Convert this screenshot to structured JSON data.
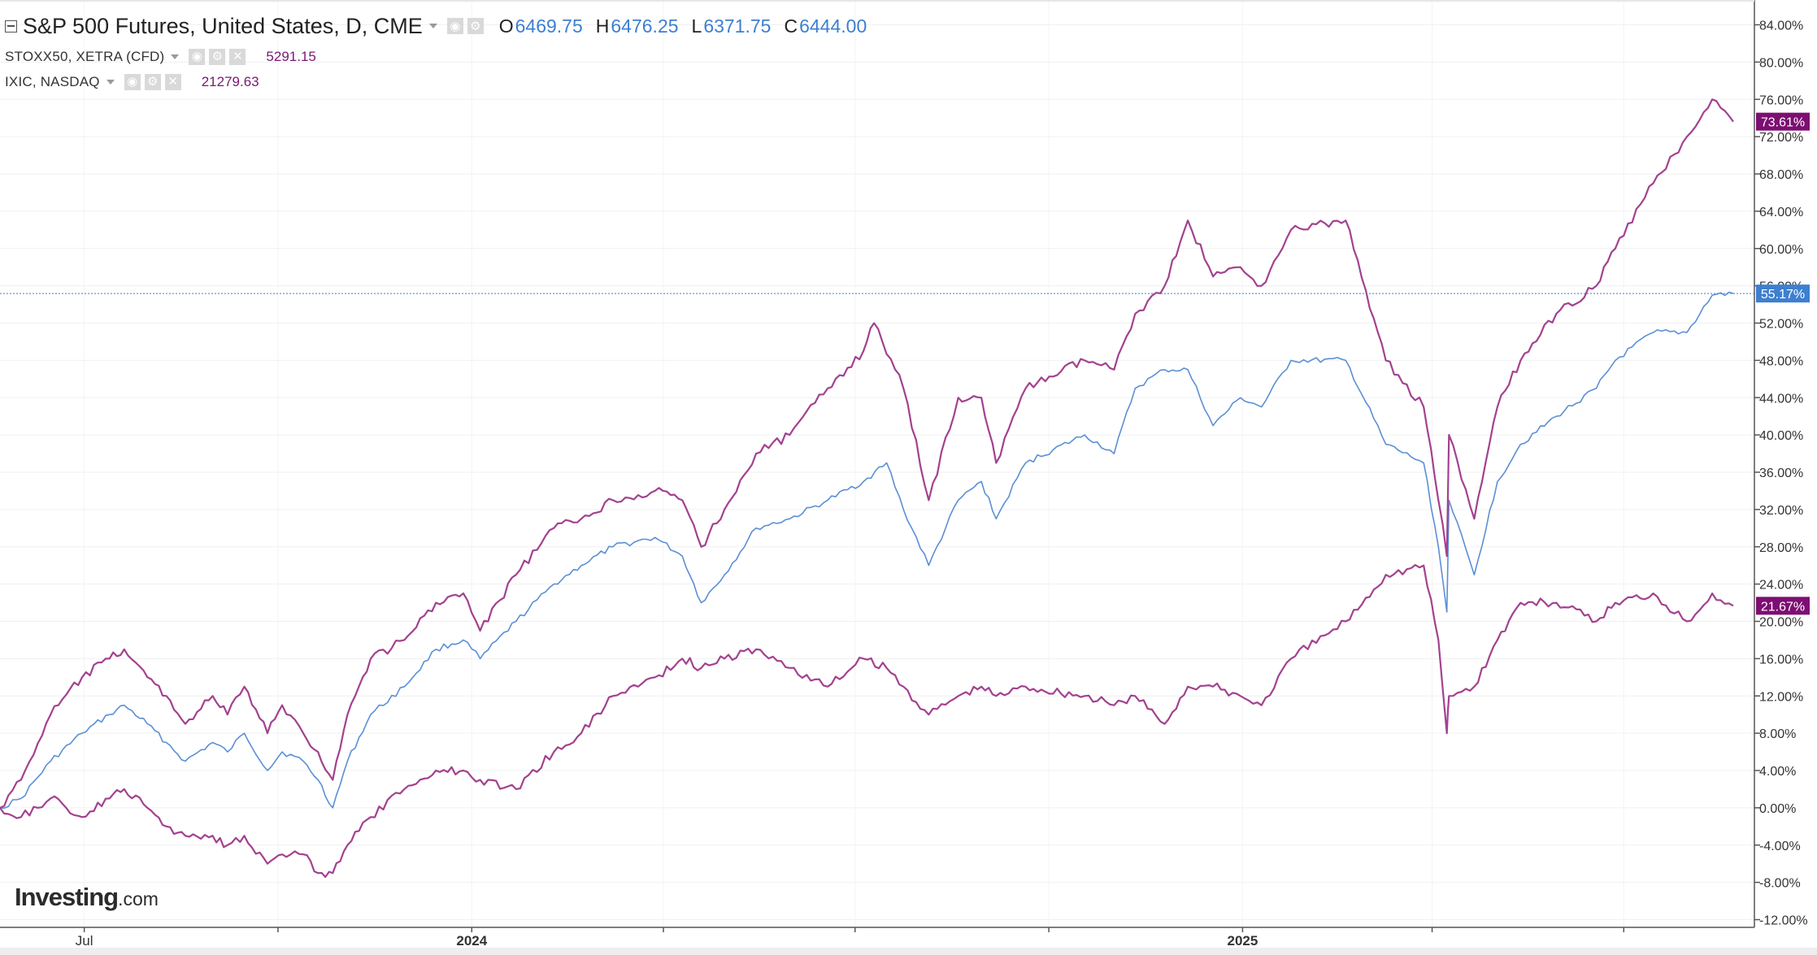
{
  "legend": {
    "main": {
      "name": "S&P 500 Futures, United States, D, CME",
      "ohlc": [
        {
          "label": "O",
          "value": "6469.75"
        },
        {
          "label": "H",
          "value": "6476.25"
        },
        {
          "label": "L",
          "value": "6371.75"
        },
        {
          "label": "C",
          "value": "6444.00"
        }
      ]
    },
    "subs": [
      {
        "name": "STOXX50, XETRA (CFD)",
        "value": "5291.15"
      },
      {
        "name": "IXIC, NASDAQ",
        "value": "21279.63"
      }
    ]
  },
  "watermark": {
    "brand": "Investing",
    "suffix": ".com"
  },
  "colors": {
    "sp500": "#5b8fd6",
    "stoxx": "#a3418f",
    "nasdaq": "#a3418f",
    "badge_purple": "#7d0e72",
    "badge_blue": "#3d7fd0"
  },
  "chart_data": {
    "type": "line",
    "title": "S&P 500 Futures, United States, D, CME",
    "y_unit": "% change",
    "ylim": [
      -12,
      84
    ],
    "y_ticks": [
      "84.00%",
      "80.00%",
      "76.00%",
      "72.00%",
      "68.00%",
      "64.00%",
      "60.00%",
      "56.00%",
      "52.00%",
      "48.00%",
      "44.00%",
      "40.00%",
      "36.00%",
      "32.00%",
      "28.00%",
      "24.00%",
      "20.00%",
      "16.00%",
      "12.00%",
      "8.00%",
      "4.00%",
      "0.00%",
      "-4.00%",
      "-8.00%",
      "-12.00%"
    ],
    "x_labels": [
      "Jul",
      "2024",
      "2025"
    ],
    "x_range": [
      "2023-05-22",
      "2025-08-22"
    ],
    "crosshair_value": 55.17,
    "series": [
      {
        "key": "sp500",
        "end_label": "55.17%",
        "points": [
          [
            "2023-05-22",
            0
          ],
          [
            "2023-06-01",
            1
          ],
          [
            "2023-06-15",
            5
          ],
          [
            "2023-06-30",
            8
          ],
          [
            "2023-07-13",
            10
          ],
          [
            "2023-07-20",
            11
          ],
          [
            "2023-07-31",
            9
          ],
          [
            "2023-08-09",
            7
          ],
          [
            "2023-08-18",
            5
          ],
          [
            "2023-08-31",
            7
          ],
          [
            "2023-09-07",
            6
          ],
          [
            "2023-09-15",
            8
          ],
          [
            "2023-09-26",
            4
          ],
          [
            "2023-10-03",
            6
          ],
          [
            "2023-10-13",
            5
          ],
          [
            "2023-10-20",
            3
          ],
          [
            "2023-10-27",
            0
          ],
          [
            "2023-11-03",
            5
          ],
          [
            "2023-11-14",
            10
          ],
          [
            "2023-11-30",
            13
          ],
          [
            "2023-12-15",
            17
          ],
          [
            "2023-12-28",
            18
          ],
          [
            "2024-01-05",
            16
          ],
          [
            "2024-01-22",
            20
          ],
          [
            "2024-02-09",
            24
          ],
          [
            "2024-02-22",
            26
          ],
          [
            "2024-03-08",
            28
          ],
          [
            "2024-03-28",
            29
          ],
          [
            "2024-04-10",
            27
          ],
          [
            "2024-04-19",
            22
          ],
          [
            "2024-04-30",
            25
          ],
          [
            "2024-05-15",
            30
          ],
          [
            "2024-05-31",
            31
          ],
          [
            "2024-06-18",
            33
          ],
          [
            "2024-07-05",
            35
          ],
          [
            "2024-07-16",
            37
          ],
          [
            "2024-07-24",
            32
          ],
          [
            "2024-08-05",
            26
          ],
          [
            "2024-08-19",
            33
          ],
          [
            "2024-08-30",
            35
          ],
          [
            "2024-09-06",
            31
          ],
          [
            "2024-09-20",
            37
          ],
          [
            "2024-10-18",
            40
          ],
          [
            "2024-11-01",
            38
          ],
          [
            "2024-11-11",
            45
          ],
          [
            "2024-11-25",
            47
          ],
          [
            "2024-12-06",
            47
          ],
          [
            "2024-12-18",
            41
          ],
          [
            "2024-12-31",
            44
          ],
          [
            "2025-01-10",
            43
          ],
          [
            "2025-01-24",
            48
          ],
          [
            "2025-02-19",
            48
          ],
          [
            "2025-03-10",
            39
          ],
          [
            "2025-03-28",
            37
          ],
          [
            "2025-04-04",
            28
          ],
          [
            "2025-04-08",
            21
          ],
          [
            "2025-04-09",
            33
          ],
          [
            "2025-04-21",
            25
          ],
          [
            "2025-05-02",
            35
          ],
          [
            "2025-05-13",
            39
          ],
          [
            "2025-05-30",
            42
          ],
          [
            "2025-06-18",
            45
          ],
          [
            "2025-06-27",
            48
          ],
          [
            "2025-07-15",
            51
          ],
          [
            "2025-07-31",
            51
          ],
          [
            "2025-08-12",
            55
          ],
          [
            "2025-08-22",
            55.17
          ]
        ]
      },
      {
        "key": "nasdaq",
        "end_label": "73.61%",
        "points": [
          [
            "2023-05-22",
            0
          ],
          [
            "2023-06-01",
            3
          ],
          [
            "2023-06-15",
            10
          ],
          [
            "2023-06-30",
            14
          ],
          [
            "2023-07-13",
            16
          ],
          [
            "2023-07-20",
            17
          ],
          [
            "2023-07-31",
            14
          ],
          [
            "2023-08-09",
            12
          ],
          [
            "2023-08-18",
            9
          ],
          [
            "2023-08-31",
            12
          ],
          [
            "2023-09-07",
            10
          ],
          [
            "2023-09-15",
            13
          ],
          [
            "2023-09-26",
            8
          ],
          [
            "2023-10-03",
            11
          ],
          [
            "2023-10-13",
            8
          ],
          [
            "2023-10-20",
            6
          ],
          [
            "2023-10-27",
            3
          ],
          [
            "2023-11-03",
            10
          ],
          [
            "2023-11-14",
            16
          ],
          [
            "2023-11-30",
            18
          ],
          [
            "2023-12-15",
            22
          ],
          [
            "2023-12-28",
            23
          ],
          [
            "2024-01-05",
            19
          ],
          [
            "2024-01-22",
            25
          ],
          [
            "2024-02-09",
            30
          ],
          [
            "2024-02-22",
            31
          ],
          [
            "2024-03-08",
            33
          ],
          [
            "2024-03-28",
            34
          ],
          [
            "2024-04-10",
            33
          ],
          [
            "2024-04-19",
            28
          ],
          [
            "2024-04-30",
            32
          ],
          [
            "2024-05-15",
            38
          ],
          [
            "2024-05-31",
            40
          ],
          [
            "2024-06-18",
            45
          ],
          [
            "2024-07-05",
            49
          ],
          [
            "2024-07-10",
            52
          ],
          [
            "2024-07-24",
            45
          ],
          [
            "2024-08-05",
            33
          ],
          [
            "2024-08-19",
            44
          ],
          [
            "2024-08-30",
            44
          ],
          [
            "2024-09-06",
            37
          ],
          [
            "2024-09-20",
            45
          ],
          [
            "2024-10-18",
            48
          ],
          [
            "2024-11-01",
            47
          ],
          [
            "2024-11-11",
            53
          ],
          [
            "2024-11-25",
            56
          ],
          [
            "2024-12-06",
            63
          ],
          [
            "2024-12-18",
            57
          ],
          [
            "2024-12-31",
            58
          ],
          [
            "2025-01-10",
            56
          ],
          [
            "2025-01-24",
            62
          ],
          [
            "2025-02-19",
            63
          ],
          [
            "2025-03-10",
            48
          ],
          [
            "2025-03-28",
            43
          ],
          [
            "2025-04-04",
            33
          ],
          [
            "2025-04-08",
            27
          ],
          [
            "2025-04-09",
            40
          ],
          [
            "2025-04-21",
            31
          ],
          [
            "2025-05-02",
            43
          ],
          [
            "2025-05-13",
            48
          ],
          [
            "2025-05-30",
            53
          ],
          [
            "2025-06-18",
            56
          ],
          [
            "2025-06-27",
            60
          ],
          [
            "2025-07-15",
            67
          ],
          [
            "2025-07-31",
            72
          ],
          [
            "2025-08-12",
            76
          ],
          [
            "2025-08-22",
            73.61
          ]
        ]
      },
      {
        "key": "stoxx",
        "end_label": "21.67%",
        "points": [
          [
            "2023-05-22",
            0
          ],
          [
            "2023-06-01",
            -1
          ],
          [
            "2023-06-15",
            1
          ],
          [
            "2023-06-30",
            -1
          ],
          [
            "2023-07-13",
            1
          ],
          [
            "2023-07-20",
            2
          ],
          [
            "2023-07-31",
            0
          ],
          [
            "2023-08-09",
            -2
          ],
          [
            "2023-08-18",
            -3
          ],
          [
            "2023-08-31",
            -3
          ],
          [
            "2023-09-07",
            -4
          ],
          [
            "2023-09-15",
            -3
          ],
          [
            "2023-09-26",
            -6
          ],
          [
            "2023-10-03",
            -5
          ],
          [
            "2023-10-13",
            -5
          ],
          [
            "2023-10-20",
            -7
          ],
          [
            "2023-10-27",
            -7
          ],
          [
            "2023-11-03",
            -4
          ],
          [
            "2023-11-14",
            -1
          ],
          [
            "2023-11-30",
            2
          ],
          [
            "2023-12-15",
            4
          ],
          [
            "2023-12-28",
            4
          ],
          [
            "2024-01-05",
            3
          ],
          [
            "2024-01-22",
            2
          ],
          [
            "2024-02-09",
            6
          ],
          [
            "2024-02-22",
            8
          ],
          [
            "2024-03-08",
            12
          ],
          [
            "2024-03-28",
            14
          ],
          [
            "2024-04-10",
            16
          ],
          [
            "2024-04-19",
            15
          ],
          [
            "2024-04-30",
            16
          ],
          [
            "2024-05-15",
            17
          ],
          [
            "2024-05-31",
            15
          ],
          [
            "2024-06-18",
            13
          ],
          [
            "2024-07-05",
            16
          ],
          [
            "2024-07-16",
            15
          ],
          [
            "2024-07-24",
            13
          ],
          [
            "2024-08-05",
            10
          ],
          [
            "2024-08-19",
            12
          ],
          [
            "2024-08-30",
            13
          ],
          [
            "2024-09-06",
            12
          ],
          [
            "2024-09-20",
            13
          ],
          [
            "2024-10-18",
            12
          ],
          [
            "2024-11-01",
            11
          ],
          [
            "2024-11-11",
            12
          ],
          [
            "2024-11-25",
            9
          ],
          [
            "2024-12-06",
            13
          ],
          [
            "2024-12-18",
            13
          ],
          [
            "2024-12-31",
            12
          ],
          [
            "2025-01-10",
            11
          ],
          [
            "2025-01-24",
            16
          ],
          [
            "2025-02-19",
            20
          ],
          [
            "2025-03-10",
            25
          ],
          [
            "2025-03-28",
            26
          ],
          [
            "2025-04-04",
            18
          ],
          [
            "2025-04-08",
            8
          ],
          [
            "2025-04-09",
            12
          ],
          [
            "2025-04-21",
            13
          ],
          [
            "2025-05-02",
            18
          ],
          [
            "2025-05-13",
            22
          ],
          [
            "2025-05-30",
            22
          ],
          [
            "2025-06-18",
            20
          ],
          [
            "2025-06-27",
            22
          ],
          [
            "2025-07-15",
            23
          ],
          [
            "2025-07-31",
            20
          ],
          [
            "2025-08-12",
            23
          ],
          [
            "2025-08-22",
            21.67
          ]
        ]
      }
    ]
  }
}
